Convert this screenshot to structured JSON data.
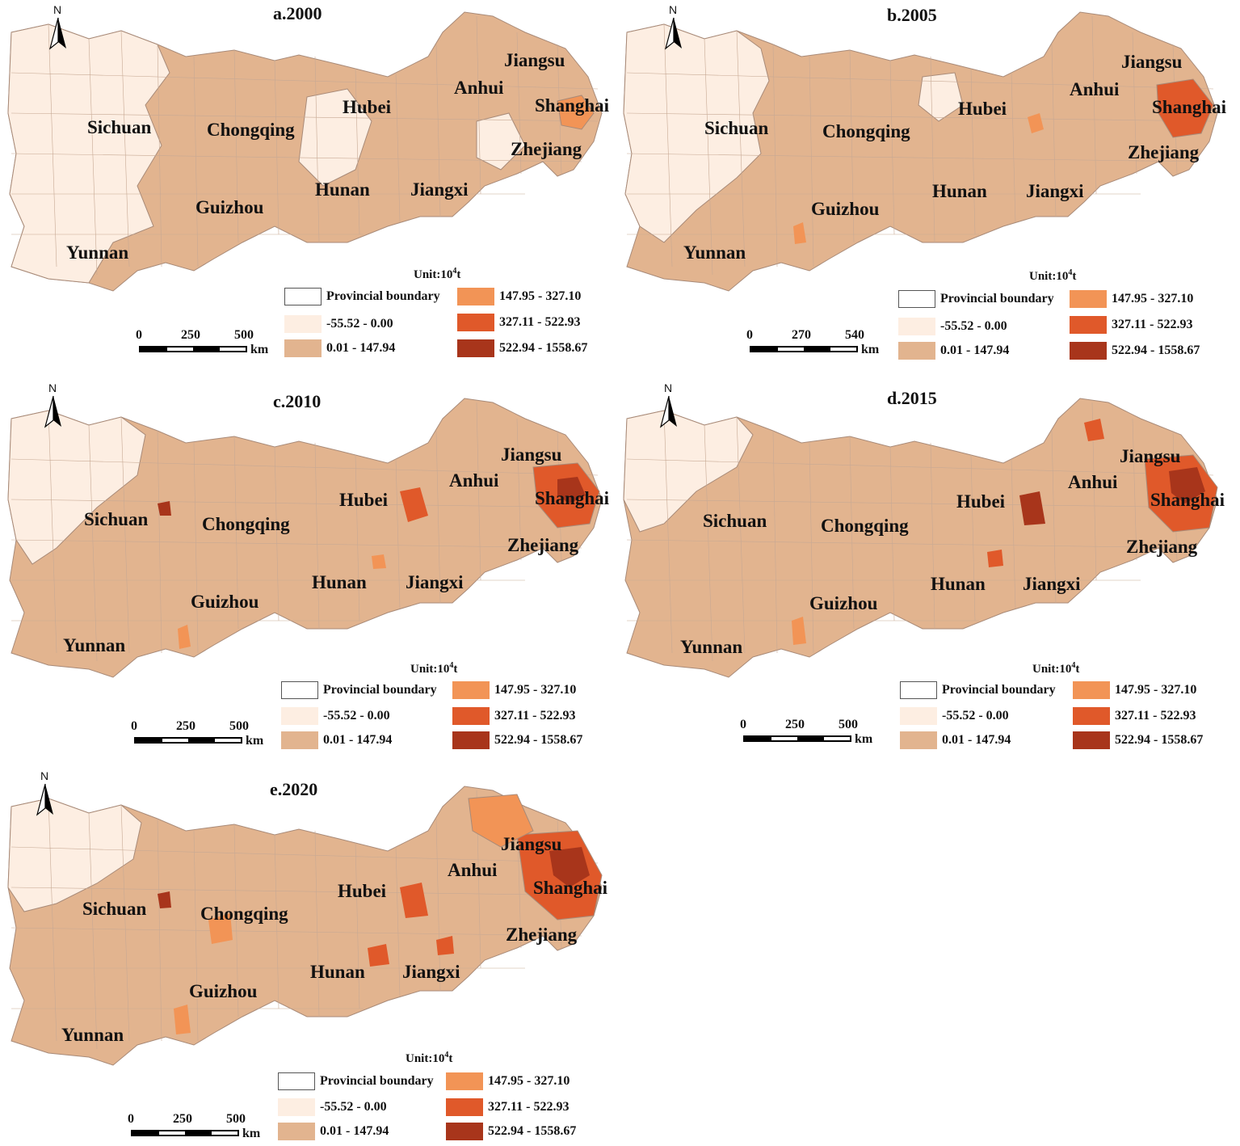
{
  "colors": {
    "provincial_boundary": "#ffffff",
    "class1": "#fdeee2",
    "class2": "#e2b48f",
    "class3": "#f29456",
    "class4": "#e0592a",
    "class5": "#a8351b",
    "county_line": "#a88a78"
  },
  "north_letter": "N",
  "unit_label": "Unit:10",
  "unit_sup": "4",
  "unit_tail": "t",
  "legend": [
    {
      "label": "Provincial boundary",
      "color_key": "provincial_boundary"
    },
    {
      "label": "-55.52 - 0.00",
      "color_key": "class1"
    },
    {
      "label": "0.01 - 147.94",
      "color_key": "class2"
    },
    {
      "label": "147.95 - 327.10",
      "color_key": "class3"
    },
    {
      "label": "327.11 - 522.93",
      "color_key": "class4"
    },
    {
      "label": "522.94 - 1558.67",
      "color_key": "class5"
    }
  ],
  "provinces": [
    "Sichuan",
    "Chongqing",
    "Hubei",
    "Anhui",
    "Jiangsu",
    "Shanghai",
    "Zhejiang",
    "Hunan",
    "Jiangxi",
    "Guizhou",
    "Yunnan"
  ],
  "panels": [
    {
      "title": "a.2000",
      "scale": [
        "0",
        "250",
        "500"
      ],
      "scale_unit": "km"
    },
    {
      "title": "b.2005",
      "scale": [
        "0",
        "270",
        "540"
      ],
      "scale_unit": "km"
    },
    {
      "title": "c.2010",
      "scale": [
        "0",
        "250",
        "500"
      ],
      "scale_unit": "km"
    },
    {
      "title": "d.2015",
      "scale": [
        "0",
        "250",
        "500"
      ],
      "scale_unit": "km"
    },
    {
      "title": "e.2020",
      "scale": [
        "0",
        "250",
        "500"
      ],
      "scale_unit": "km"
    }
  ]
}
